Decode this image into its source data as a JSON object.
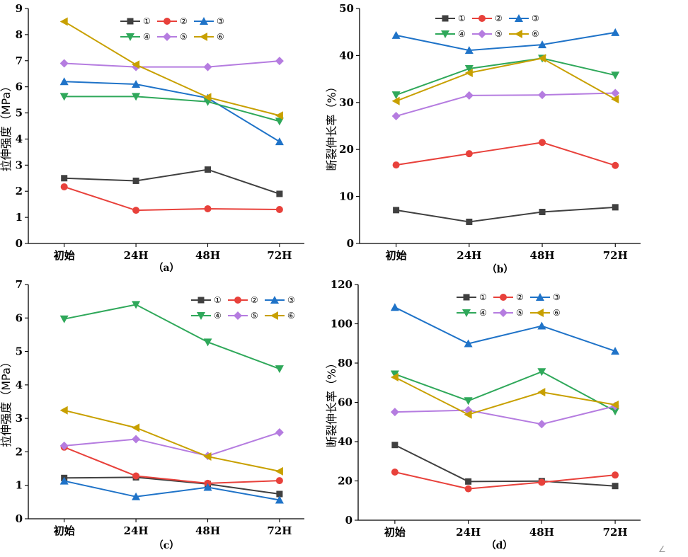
{
  "colors": {
    "s1": "#404040",
    "s2": "#e8413b",
    "s3": "#1f73c8",
    "s4": "#2fa85a",
    "s5": "#b57ce0",
    "s6": "#c8a000"
  },
  "corner_mark": "∠",
  "chart_data": [
    {
      "type": "line",
      "panel_label": "（a）",
      "categories": [
        "初始",
        "24H",
        "48H",
        "72H"
      ],
      "ylabel": "拉伸强度（MPa）",
      "ylim": [
        0,
        9
      ],
      "yticks": [
        0,
        1,
        2,
        3,
        4,
        5,
        6,
        7,
        8,
        9
      ],
      "legend_position": "top-right",
      "series": [
        {
          "name": "①",
          "marker": "square",
          "values": [
            2.5,
            2.4,
            2.83,
            1.9
          ]
        },
        {
          "name": "②",
          "marker": "circle",
          "values": [
            2.17,
            1.27,
            1.33,
            1.3
          ]
        },
        {
          "name": "③",
          "marker": "triangle-up",
          "values": [
            6.2,
            6.1,
            5.57,
            3.9
          ]
        },
        {
          "name": "④",
          "marker": "triangle-down",
          "values": [
            5.63,
            5.63,
            5.43,
            4.68
          ]
        },
        {
          "name": "⑤",
          "marker": "diamond",
          "values": [
            6.9,
            6.76,
            6.76,
            6.99
          ]
        },
        {
          "name": "⑥",
          "marker": "triangle-left",
          "values": [
            8.5,
            6.85,
            5.6,
            4.9
          ]
        }
      ]
    },
    {
      "type": "line",
      "panel_label": "（b）",
      "categories": [
        "初始",
        "24H",
        "48H",
        "72H"
      ],
      "ylabel": "断裂伸长率（%）",
      "ylim": [
        0,
        50
      ],
      "yticks": [
        0,
        10,
        20,
        30,
        40,
        50
      ],
      "legend_position": "top-right",
      "series": [
        {
          "name": "①",
          "marker": "square",
          "values": [
            7.1,
            4.6,
            6.7,
            7.7
          ]
        },
        {
          "name": "②",
          "marker": "circle",
          "values": [
            16.7,
            19.1,
            21.5,
            16.6
          ]
        },
        {
          "name": "③",
          "marker": "triangle-up",
          "values": [
            44.3,
            41.1,
            42.3,
            44.9
          ]
        },
        {
          "name": "④",
          "marker": "triangle-down",
          "values": [
            31.6,
            37.2,
            39.4,
            35.8
          ]
        },
        {
          "name": "⑤",
          "marker": "diamond",
          "values": [
            27.1,
            31.5,
            31.6,
            32.0
          ]
        },
        {
          "name": "⑥",
          "marker": "triangle-left",
          "values": [
            30.3,
            36.3,
            39.4,
            30.7
          ]
        }
      ]
    },
    {
      "type": "line",
      "panel_label": "（c）",
      "categories": [
        "初始",
        "24H",
        "48H",
        "72H"
      ],
      "ylabel": "拉伸强度（MPa）",
      "ylim": [
        0,
        7
      ],
      "yticks": [
        0,
        1,
        2,
        3,
        4,
        5,
        6,
        7
      ],
      "legend_position": "top-right",
      "series": [
        {
          "name": "①",
          "marker": "square",
          "values": [
            1.22,
            1.24,
            1.04,
            0.74
          ]
        },
        {
          "name": "②",
          "marker": "circle",
          "values": [
            2.14,
            1.28,
            1.06,
            1.14
          ]
        },
        {
          "name": "③",
          "marker": "triangle-up",
          "values": [
            1.13,
            0.66,
            0.94,
            0.56
          ]
        },
        {
          "name": "④",
          "marker": "triangle-down",
          "values": [
            5.97,
            6.4,
            5.28,
            4.48
          ]
        },
        {
          "name": "⑤",
          "marker": "diamond",
          "values": [
            2.18,
            2.38,
            1.88,
            2.58
          ]
        },
        {
          "name": "⑥",
          "marker": "triangle-left",
          "values": [
            3.24,
            2.72,
            1.86,
            1.42
          ]
        }
      ]
    },
    {
      "type": "line",
      "panel_label": "（d）",
      "categories": [
        "初始",
        "24H",
        "48H",
        "72H"
      ],
      "ylabel": "断裂伸长率（%）",
      "ylim": [
        0,
        120
      ],
      "yticks": [
        0,
        20,
        40,
        60,
        80,
        100,
        120
      ],
      "legend_position": "top-right",
      "series": [
        {
          "name": "①",
          "marker": "square",
          "values": [
            38.3,
            19.7,
            19.9,
            17.4
          ]
        },
        {
          "name": "②",
          "marker": "circle",
          "values": [
            24.5,
            16.0,
            19.3,
            23.0
          ]
        },
        {
          "name": "③",
          "marker": "triangle-up",
          "values": [
            108.4,
            89.9,
            98.9,
            86.1
          ]
        },
        {
          "name": "④",
          "marker": "triangle-down",
          "values": [
            74.4,
            60.8,
            75.6,
            55.5
          ]
        },
        {
          "name": "⑤",
          "marker": "diamond",
          "values": [
            55.1,
            56.0,
            48.9,
            58.1
          ]
        },
        {
          "name": "⑥",
          "marker": "triangle-left",
          "values": [
            72.8,
            53.8,
            65.2,
            58.8
          ]
        }
      ]
    }
  ]
}
